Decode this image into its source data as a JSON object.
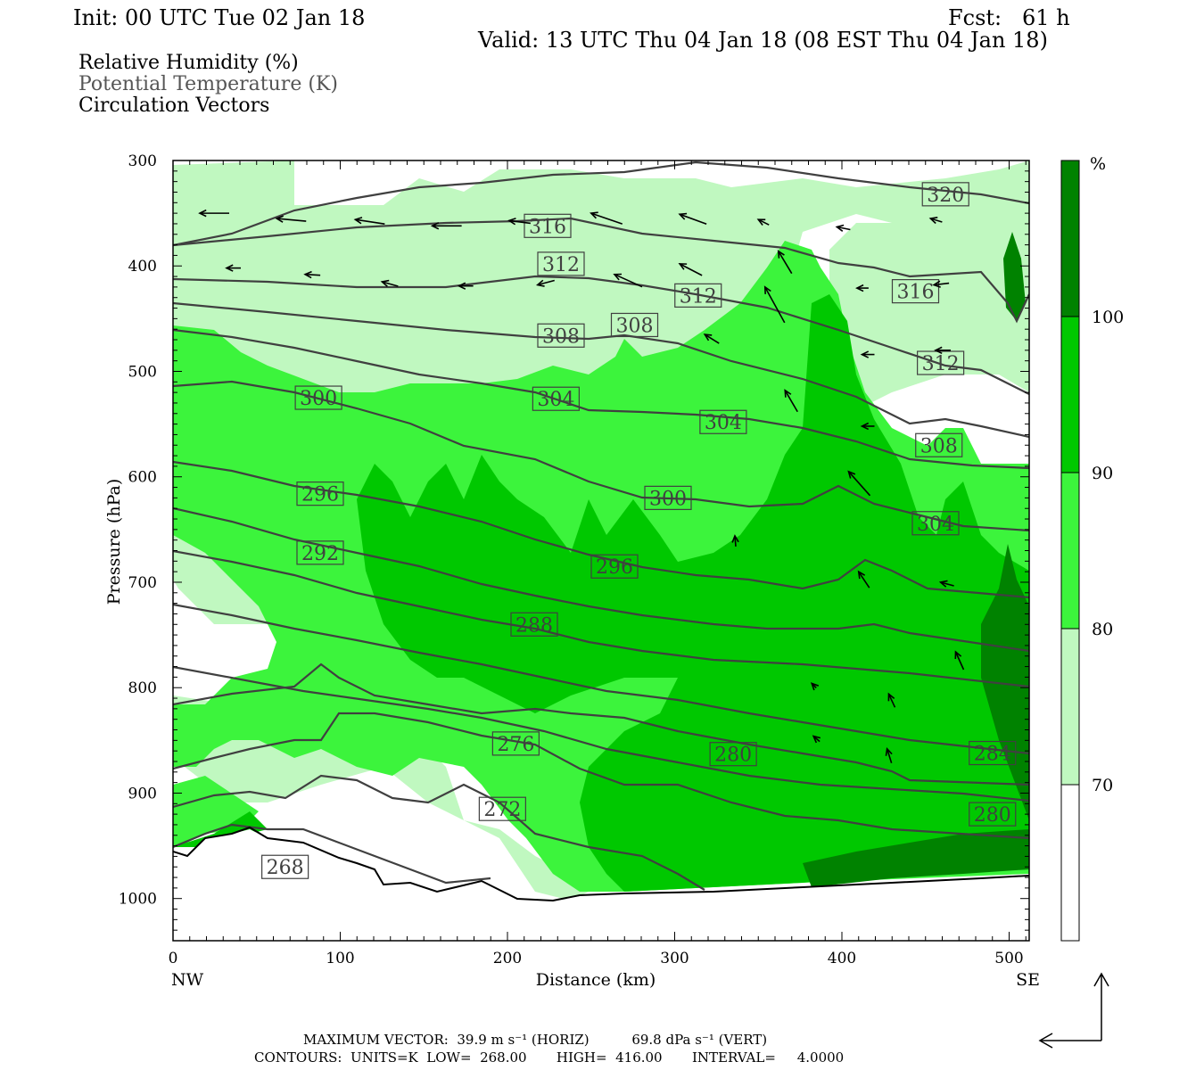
{
  "header": {
    "init": "Init: 00 UTC Tue 02 Jan 18",
    "fcst": "Fcst:   61 h",
    "valid": "Valid: 13 UTC Thu 04 Jan 18 (08 EST Thu 04 Jan 18)"
  },
  "legend_lines": {
    "rh": "Relative Humidity (%)",
    "theta": "Potential Temperature (K)",
    "vectors": "Circulation Vectors"
  },
  "colors": {
    "rh70": "#c0f8c0",
    "rh80": "#3cf43c",
    "rh90": "#00c800",
    "rh100": "#008200",
    "contour": "#404040",
    "vector": "#000000"
  },
  "chart_data": {
    "type": "contour",
    "x_axis": {
      "label": "Distance (km)",
      "range": [
        0,
        512
      ],
      "ticks": [
        0,
        100,
        200,
        300,
        400,
        500
      ],
      "left_end": "NW",
      "right_end": "SE"
    },
    "y_axis": {
      "label": "Pressure (hPa)",
      "range": [
        300,
        1040
      ],
      "ticks": [
        300,
        400,
        500,
        600,
        700,
        800,
        900,
        1000
      ]
    },
    "colorbar": {
      "unit": "%",
      "levels": [
        70,
        80,
        90,
        100
      ]
    },
    "theta_contour_labels": [
      {
        "text": "320",
        "x": 462,
        "p": 332
      },
      {
        "text": "316",
        "x": 224,
        "p": 362
      },
      {
        "text": "316",
        "x": 444,
        "p": 424
      },
      {
        "text": "312",
        "x": 232,
        "p": 398
      },
      {
        "text": "312",
        "x": 314,
        "p": 428
      },
      {
        "text": "312",
        "x": 459,
        "p": 492
      },
      {
        "text": "308",
        "x": 232,
        "p": 466
      },
      {
        "text": "308",
        "x": 276,
        "p": 456
      },
      {
        "text": "308",
        "x": 458,
        "p": 570
      },
      {
        "text": "304",
        "x": 229,
        "p": 526
      },
      {
        "text": "304",
        "x": 329,
        "p": 548
      },
      {
        "text": "304",
        "x": 456,
        "p": 644
      },
      {
        "text": "300",
        "x": 87,
        "p": 525
      },
      {
        "text": "300",
        "x": 296,
        "p": 620
      },
      {
        "text": "296",
        "x": 88,
        "p": 616
      },
      {
        "text": "296",
        "x": 264,
        "p": 685
      },
      {
        "text": "292",
        "x": 88,
        "p": 672
      },
      {
        "text": "288",
        "x": 216,
        "p": 740
      },
      {
        "text": "284",
        "x": 490,
        "p": 862
      },
      {
        "text": "280",
        "x": 335,
        "p": 863
      },
      {
        "text": "280",
        "x": 490,
        "p": 920
      },
      {
        "text": "276",
        "x": 205,
        "p": 853
      },
      {
        "text": "272",
        "x": 197,
        "p": 915
      },
      {
        "text": "268",
        "x": 67,
        "p": 970
      }
    ],
    "vectors": [
      {
        "x": 16,
        "p": 350,
        "dx": 33,
        "dy": 0
      },
      {
        "x": 62,
        "p": 355,
        "dx": 33,
        "dy": -3
      },
      {
        "x": 109,
        "p": 356,
        "dx": 33,
        "dy": -5
      },
      {
        "x": 155,
        "p": 362,
        "dx": 33,
        "dy": 0
      },
      {
        "x": 201,
        "p": 357,
        "dx": 24,
        "dy": -3
      },
      {
        "x": 250,
        "p": 350,
        "dx": 35,
        "dy": -12
      },
      {
        "x": 303,
        "p": 351,
        "dx": 30,
        "dy": -11
      },
      {
        "x": 350,
        "p": 356,
        "dx": 12,
        "dy": -6
      },
      {
        "x": 397,
        "p": 363,
        "dx": 15,
        "dy": -3
      },
      {
        "x": 453,
        "p": 355,
        "dx": 13,
        "dy": -4
      },
      {
        "x": 32,
        "p": 402,
        "dx": 16,
        "dy": 0
      },
      {
        "x": 79,
        "p": 408,
        "dx": 17,
        "dy": -1
      },
      {
        "x": 125,
        "p": 415,
        "dx": 18,
        "dy": -5
      },
      {
        "x": 171,
        "p": 419,
        "dx": 16,
        "dy": 0
      },
      {
        "x": 218,
        "p": 418,
        "dx": 19,
        "dy": 5
      },
      {
        "x": 264,
        "p": 408,
        "dx": 31,
        "dy": -14
      },
      {
        "x": 303,
        "p": 398,
        "dx": 25,
        "dy": -13
      },
      {
        "x": 362,
        "p": 386,
        "dx": 15,
        "dy": -25
      },
      {
        "x": 409,
        "p": 421,
        "dx": 13,
        "dy": 0
      },
      {
        "x": 455,
        "p": 418,
        "dx": 17,
        "dy": 2
      },
      {
        "x": 354,
        "p": 420,
        "dx": 22,
        "dy": -40
      },
      {
        "x": 412,
        "p": 484,
        "dx": 14,
        "dy": 0
      },
      {
        "x": 456,
        "p": 480,
        "dx": 17,
        "dy": 0
      },
      {
        "x": 318,
        "p": 465,
        "dx": 16,
        "dy": -10
      },
      {
        "x": 366,
        "p": 518,
        "dx": 14,
        "dy": -24
      },
      {
        "x": 412,
        "p": 552,
        "dx": 14,
        "dy": 0
      },
      {
        "x": 404,
        "p": 595,
        "dx": 24,
        "dy": -27
      },
      {
        "x": 459,
        "p": 700,
        "dx": 15,
        "dy": -4
      },
      {
        "x": 410,
        "p": 690,
        "dx": 12,
        "dy": -18
      },
      {
        "x": 468,
        "p": 766,
        "dx": 9,
        "dy": -20
      },
      {
        "x": 428,
        "p": 806,
        "dx": 7,
        "dy": -15
      },
      {
        "x": 427,
        "p": 858,
        "dx": 5,
        "dy": -16
      },
      {
        "x": 382,
        "p": 796,
        "dx": 5,
        "dy": -5
      },
      {
        "x": 383,
        "p": 846,
        "dx": 7,
        "dy": -6
      },
      {
        "x": 336,
        "p": 656,
        "dx": 1,
        "dy": -12
      }
    ]
  },
  "footer": {
    "line1": "MAXIMUM VECTOR:  39.9 m s⁻¹ (HORIZ)          69.8 dPa s⁻¹ (VERT)",
    "line2": "CONTOURS:  UNITS=K  LOW=  268.00       HIGH=  416.00       INTERVAL=     4.0000"
  }
}
